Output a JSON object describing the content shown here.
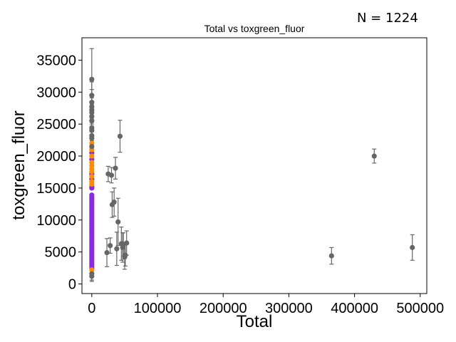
{
  "chart_data": {
    "type": "scatter",
    "title": "Total vs toxgreen_fluor",
    "annotation": "N = 1224",
    "xlabel": "Total",
    "ylabel": "toxgreen_fluor",
    "xlim": [
      -15000,
      510000
    ],
    "ylim": [
      -1500,
      38500
    ],
    "xticks": [
      0,
      100000,
      200000,
      300000,
      400000,
      500000
    ],
    "yticks": [
      0,
      5000,
      10000,
      15000,
      20000,
      25000,
      30000,
      35000
    ],
    "grid": false,
    "colors": {
      "purple": "#8a2be2",
      "orange": "#ff8c00",
      "gray": "#666666"
    },
    "series": [
      {
        "color": "purple",
        "x": [
          0,
          0,
          0,
          0,
          0,
          0,
          0,
          0,
          0,
          0,
          0,
          0,
          0,
          0,
          0,
          0,
          0,
          0,
          0,
          0,
          0,
          0,
          0,
          0,
          0,
          0,
          0,
          0,
          0,
          0,
          0,
          0,
          0,
          0,
          0,
          0,
          0,
          0,
          0,
          0
        ],
        "y": [
          2500,
          2800,
          3100,
          3400,
          3700,
          4000,
          4300,
          4600,
          4900,
          5200,
          5500,
          5800,
          6100,
          6400,
          6700,
          7000,
          7300,
          7600,
          7900,
          8200,
          8500,
          8800,
          9100,
          9400,
          9700,
          10000,
          10300,
          10600,
          10900,
          11200,
          11500,
          11800,
          12100,
          12400,
          12700,
          13000,
          13300,
          13600,
          13900,
          15000
        ]
      },
      {
        "color": "purple",
        "x": [
          0,
          0,
          0,
          0,
          0
        ],
        "y": [
          15200,
          16400,
          17200,
          19500,
          20500
        ]
      },
      {
        "color": "orange",
        "x": [
          0,
          0,
          0,
          0,
          0,
          0,
          0,
          0,
          0,
          0,
          0
        ],
        "y": [
          2200,
          15600,
          16000,
          16800,
          17600,
          18000,
          18500,
          19000,
          20000,
          21000,
          22000
        ]
      },
      {
        "color": "gray",
        "x": [
          0,
          0,
          0,
          0,
          0,
          0,
          0,
          0,
          0,
          0,
          0,
          0,
          0,
          0,
          0,
          23000,
          25000,
          28000,
          30000,
          31000,
          34000,
          36000,
          38000,
          40000,
          43000,
          45000,
          47000,
          48000,
          50000,
          51000,
          53000,
          365000,
          430000,
          488000
        ],
        "y": [
          1200,
          1600,
          21500,
          22800,
          23200,
          24000,
          24400,
          25500,
          26200,
          26800,
          27200,
          27700,
          28400,
          29500,
          32000,
          4900,
          17200,
          6000,
          17000,
          12400,
          12800,
          18100,
          5500,
          9700,
          23100,
          6300,
          5700,
          6200,
          4200,
          4500,
          6400,
          4400,
          20000,
          5700
        ],
        "err": [
          800,
          1000,
          1500,
          1500,
          1500,
          1600,
          1600,
          1700,
          1800,
          1800,
          1900,
          1900,
          2000,
          2100,
          4800,
          2200,
          1200,
          1200,
          1200,
          2000,
          2200,
          1700,
          2600,
          3700,
          2500,
          2600,
          2300,
          1800,
          1900,
          1700,
          1900,
          1300,
          1100,
          2000
        ]
      }
    ]
  }
}
